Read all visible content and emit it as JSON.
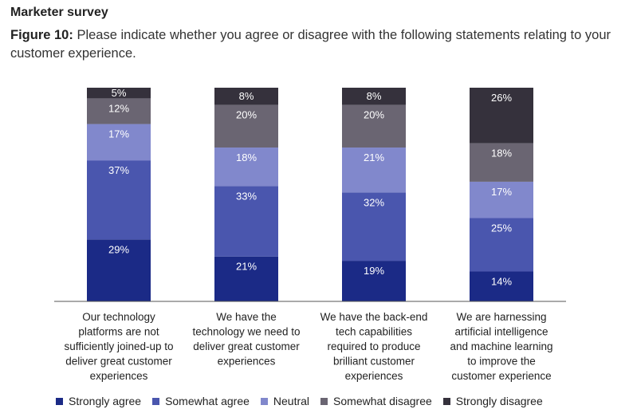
{
  "header": {
    "kicker": "Marketer survey",
    "figure_label": "Figure 10:",
    "figure_text": "Please indicate whether you agree or disagree with the following statements relating to your customer experience."
  },
  "colors": {
    "Strongly agree": "#1b2a86",
    "Somewhat agree": "#4a56ae",
    "Neutral": "#8188cc",
    "Somewhat disagree": "#6a6572",
    "Strongly disagree": "#35313c"
  },
  "chart_data": {
    "type": "bar",
    "stacked": true,
    "categories": [
      "Our technology platforms are not sufficiently joined-up to deliver great customer experiences",
      "We have the technology we need to deliver great customer experiences",
      "We have the back-end tech capabilities required to produce brilliant customer experiences",
      "We are harnessing artificial intelligence and machine learning to improve the customer experience"
    ],
    "category_lines": [
      [
        "Our technology",
        "platforms are not",
        "sufficiently joined-up to",
        "deliver great customer",
        "experiences"
      ],
      [
        "We have the",
        "technology we need to",
        "deliver great customer",
        "experiences"
      ],
      [
        "We have the back-end",
        "tech capabilities",
        "required to produce",
        "brilliant customer",
        "experiences"
      ],
      [
        "We are harnessing",
        "artificial intelligence",
        "and machine learning",
        "to improve the",
        "customer experience"
      ]
    ],
    "series": [
      {
        "name": "Strongly agree",
        "values": [
          29,
          21,
          19,
          14
        ]
      },
      {
        "name": "Somewhat agree",
        "values": [
          37,
          33,
          32,
          25
        ]
      },
      {
        "name": "Neutral",
        "values": [
          17,
          18,
          21,
          17
        ]
      },
      {
        "name": "Somewhat disagree",
        "values": [
          12,
          20,
          20,
          18
        ]
      },
      {
        "name": "Strongly disagree",
        "values": [
          5,
          8,
          8,
          26
        ]
      }
    ],
    "unit": "%",
    "ylim": [
      0,
      100
    ],
    "grid": false,
    "legend_position": "bottom"
  }
}
